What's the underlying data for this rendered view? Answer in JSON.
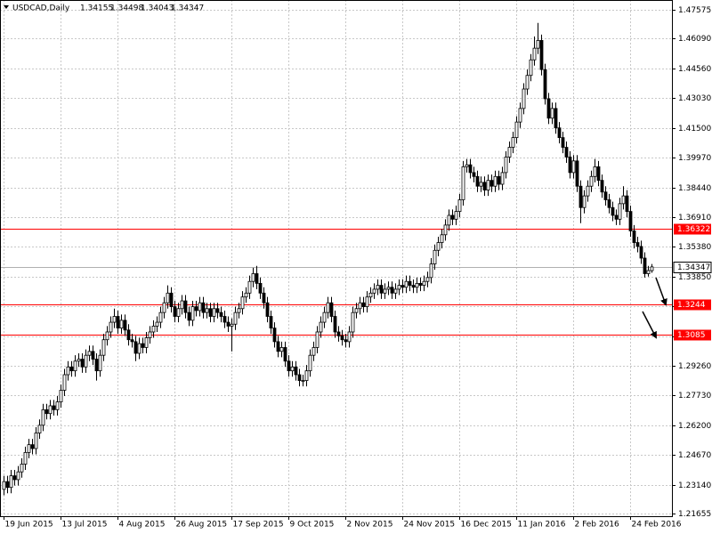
{
  "chart_data": {
    "type": "candlestick",
    "symbol": "USDCAD,Daily",
    "ohlc": [
      [
        1.229,
        1.236,
        1.226,
        1.233
      ],
      [
        1.233,
        1.236,
        1.227,
        1.23
      ],
      [
        1.23,
        1.239,
        1.227,
        1.236
      ],
      [
        1.236,
        1.239,
        1.231,
        1.234
      ],
      [
        1.234,
        1.241,
        1.231,
        1.238
      ],
      [
        1.238,
        1.245,
        1.235,
        1.242
      ],
      [
        1.242,
        1.251,
        1.239,
        1.248
      ],
      [
        1.248,
        1.255,
        1.245,
        1.252
      ],
      [
        1.252,
        1.255,
        1.247,
        1.25
      ],
      [
        1.25,
        1.261,
        1.247,
        1.258
      ],
      [
        1.258,
        1.265,
        1.255,
        1.262
      ],
      [
        1.262,
        1.273,
        1.259,
        1.27
      ],
      [
        1.27,
        1.273,
        1.265,
        1.268
      ],
      [
        1.268,
        1.275,
        1.265,
        1.272
      ],
      [
        1.272,
        1.275,
        1.267,
        1.27
      ],
      [
        1.27,
        1.277,
        1.267,
        1.274
      ],
      [
        1.274,
        1.283,
        1.271,
        1.28
      ],
      [
        1.28,
        1.291,
        1.277,
        1.288
      ],
      [
        1.288,
        1.295,
        1.285,
        1.292
      ],
      [
        1.292,
        1.295,
        1.287,
        1.29
      ],
      [
        1.29,
        1.298,
        1.287,
        1.295
      ],
      [
        1.295,
        1.299,
        1.292,
        1.296
      ],
      [
        1.296,
        1.299,
        1.289,
        1.292
      ],
      [
        1.292,
        1.301,
        1.289,
        1.298
      ],
      [
        1.298,
        1.303,
        1.295,
        1.3
      ],
      [
        1.3,
        1.303,
        1.293,
        1.296
      ],
      [
        1.296,
        1.299,
        1.285,
        1.29
      ],
      [
        1.29,
        1.301,
        1.287,
        1.298
      ],
      [
        1.298,
        1.309,
        1.295,
        1.306
      ],
      [
        1.306,
        1.313,
        1.303,
        1.31
      ],
      [
        1.31,
        1.318,
        1.307,
        1.315
      ],
      [
        1.315,
        1.322,
        1.312,
        1.318
      ],
      [
        1.318,
        1.321,
        1.309,
        1.312
      ],
      [
        1.312,
        1.319,
        1.309,
        1.316
      ],
      [
        1.316,
        1.319,
        1.308,
        1.311
      ],
      [
        1.311,
        1.314,
        1.303,
        1.306
      ],
      [
        1.306,
        1.309,
        1.302,
        1.305
      ],
      [
        1.305,
        1.308,
        1.295,
        1.299
      ],
      [
        1.299,
        1.307,
        1.296,
        1.304
      ],
      [
        1.304,
        1.307,
        1.299,
        1.302
      ],
      [
        1.302,
        1.31,
        1.299,
        1.307
      ],
      [
        1.307,
        1.313,
        1.304,
        1.31
      ],
      [
        1.31,
        1.316,
        1.307,
        1.313
      ],
      [
        1.313,
        1.318,
        1.31,
        1.315
      ],
      [
        1.315,
        1.323,
        1.312,
        1.32
      ],
      [
        1.32,
        1.328,
        1.317,
        1.325
      ],
      [
        1.325,
        1.334,
        1.322,
        1.33
      ],
      [
        1.33,
        1.333,
        1.32,
        1.323
      ],
      [
        1.323,
        1.326,
        1.315,
        1.318
      ],
      [
        1.318,
        1.325,
        1.315,
        1.322
      ],
      [
        1.322,
        1.329,
        1.319,
        1.326
      ],
      [
        1.326,
        1.329,
        1.317,
        1.32
      ],
      [
        1.32,
        1.323,
        1.313,
        1.316
      ],
      [
        1.316,
        1.326,
        1.313,
        1.323
      ],
      [
        1.323,
        1.326,
        1.318,
        1.321
      ],
      [
        1.321,
        1.328,
        1.318,
        1.325
      ],
      [
        1.325,
        1.328,
        1.317,
        1.32
      ],
      [
        1.32,
        1.325,
        1.317,
        1.322
      ],
      [
        1.322,
        1.325,
        1.315,
        1.318
      ],
      [
        1.318,
        1.325,
        1.315,
        1.322
      ],
      [
        1.322,
        1.325,
        1.317,
        1.32
      ],
      [
        1.32,
        1.323,
        1.315,
        1.318
      ],
      [
        1.318,
        1.321,
        1.312,
        1.315
      ],
      [
        1.315,
        1.318,
        1.31,
        1.313
      ],
      [
        1.313,
        1.317,
        1.3,
        1.314
      ],
      [
        1.314,
        1.323,
        1.311,
        1.32
      ],
      [
        1.32,
        1.325,
        1.317,
        1.322
      ],
      [
        1.322,
        1.331,
        1.319,
        1.328
      ],
      [
        1.328,
        1.333,
        1.325,
        1.33
      ],
      [
        1.33,
        1.339,
        1.327,
        1.336
      ],
      [
        1.336,
        1.343,
        1.333,
        1.34
      ],
      [
        1.34,
        1.344,
        1.332,
        1.335
      ],
      [
        1.335,
        1.338,
        1.327,
        1.33
      ],
      [
        1.33,
        1.333,
        1.322,
        1.325
      ],
      [
        1.325,
        1.328,
        1.315,
        1.318
      ],
      [
        1.318,
        1.321,
        1.309,
        1.312
      ],
      [
        1.312,
        1.315,
        1.302,
        1.305
      ],
      [
        1.305,
        1.308,
        1.297,
        1.3
      ],
      [
        1.3,
        1.305,
        1.297,
        1.302
      ],
      [
        1.302,
        1.305,
        1.292,
        1.295
      ],
      [
        1.295,
        1.298,
        1.287,
        1.29
      ],
      [
        1.29,
        1.295,
        1.287,
        1.292
      ],
      [
        1.292,
        1.295,
        1.285,
        1.288
      ],
      [
        1.288,
        1.291,
        1.282,
        1.285
      ],
      [
        1.285,
        1.288,
        1.282,
        1.285
      ],
      [
        1.285,
        1.293,
        1.282,
        1.29
      ],
      [
        1.29,
        1.301,
        1.287,
        1.298
      ],
      [
        1.298,
        1.305,
        1.295,
        1.302
      ],
      [
        1.302,
        1.313,
        1.299,
        1.31
      ],
      [
        1.31,
        1.318,
        1.307,
        1.315
      ],
      [
        1.315,
        1.323,
        1.312,
        1.32
      ],
      [
        1.32,
        1.328,
        1.317,
        1.325
      ],
      [
        1.325,
        1.328,
        1.315,
        1.318
      ],
      [
        1.318,
        1.321,
        1.307,
        1.31
      ],
      [
        1.31,
        1.313,
        1.305,
        1.308
      ],
      [
        1.308,
        1.311,
        1.303,
        1.306
      ],
      [
        1.306,
        1.309,
        1.302,
        1.305
      ],
      [
        1.305,
        1.313,
        1.302,
        1.31
      ],
      [
        1.31,
        1.323,
        1.307,
        1.32
      ],
      [
        1.32,
        1.325,
        1.317,
        1.322
      ],
      [
        1.322,
        1.328,
        1.319,
        1.325
      ],
      [
        1.325,
        1.328,
        1.32,
        1.323
      ],
      [
        1.323,
        1.331,
        1.32,
        1.328
      ],
      [
        1.328,
        1.333,
        1.325,
        1.33
      ],
      [
        1.33,
        1.335,
        1.327,
        1.332
      ],
      [
        1.332,
        1.337,
        1.329,
        1.334
      ],
      [
        1.334,
        1.337,
        1.327,
        1.33
      ],
      [
        1.33,
        1.335,
        1.327,
        1.332
      ],
      [
        1.332,
        1.336,
        1.329,
        1.333
      ],
      [
        1.333,
        1.336,
        1.327,
        1.33
      ],
      [
        1.33,
        1.335,
        1.327,
        1.332
      ],
      [
        1.332,
        1.337,
        1.329,
        1.334
      ],
      [
        1.334,
        1.337,
        1.33,
        1.333
      ],
      [
        1.333,
        1.339,
        1.33,
        1.336
      ],
      [
        1.336,
        1.339,
        1.331,
        1.334
      ],
      [
        1.334,
        1.337,
        1.33,
        1.333
      ],
      [
        1.333,
        1.338,
        1.33,
        1.335
      ],
      [
        1.335,
        1.338,
        1.331,
        1.334
      ],
      [
        1.334,
        1.339,
        1.331,
        1.336
      ],
      [
        1.336,
        1.341,
        1.333,
        1.338
      ],
      [
        1.338,
        1.348,
        1.335,
        1.345
      ],
      [
        1.345,
        1.355,
        1.342,
        1.352
      ],
      [
        1.352,
        1.359,
        1.349,
        1.356
      ],
      [
        1.356,
        1.363,
        1.353,
        1.36
      ],
      [
        1.36,
        1.368,
        1.357,
        1.365
      ],
      [
        1.365,
        1.373,
        1.362,
        1.37
      ],
      [
        1.37,
        1.373,
        1.365,
        1.368
      ],
      [
        1.368,
        1.375,
        1.365,
        1.372
      ],
      [
        1.372,
        1.381,
        1.369,
        1.378
      ],
      [
        1.378,
        1.398,
        1.375,
        1.395
      ],
      [
        1.395,
        1.399,
        1.392,
        1.396
      ],
      [
        1.396,
        1.399,
        1.389,
        1.392
      ],
      [
        1.392,
        1.395,
        1.387,
        1.39
      ],
      [
        1.39,
        1.393,
        1.382,
        1.385
      ],
      [
        1.385,
        1.39,
        1.382,
        1.387
      ],
      [
        1.387,
        1.39,
        1.38,
        1.383
      ],
      [
        1.383,
        1.391,
        1.38,
        1.388
      ],
      [
        1.388,
        1.391,
        1.382,
        1.385
      ],
      [
        1.385,
        1.393,
        1.382,
        1.39
      ],
      [
        1.39,
        1.393,
        1.383,
        1.386
      ],
      [
        1.386,
        1.395,
        1.383,
        1.392
      ],
      [
        1.392,
        1.403,
        1.389,
        1.4
      ],
      [
        1.4,
        1.408,
        1.397,
        1.405
      ],
      [
        1.405,
        1.413,
        1.402,
        1.41
      ],
      [
        1.41,
        1.421,
        1.407,
        1.418
      ],
      [
        1.418,
        1.428,
        1.415,
        1.425
      ],
      [
        1.425,
        1.438,
        1.422,
        1.435
      ],
      [
        1.435,
        1.445,
        1.432,
        1.442
      ],
      [
        1.442,
        1.453,
        1.439,
        1.45
      ],
      [
        1.45,
        1.462,
        1.447,
        1.456
      ],
      [
        1.456,
        1.469,
        1.453,
        1.46
      ],
      [
        1.46,
        1.463,
        1.442,
        1.445
      ],
      [
        1.445,
        1.448,
        1.427,
        1.43
      ],
      [
        1.43,
        1.433,
        1.417,
        1.42
      ],
      [
        1.42,
        1.428,
        1.417,
        1.425
      ],
      [
        1.425,
        1.428,
        1.412,
        1.415
      ],
      [
        1.415,
        1.418,
        1.407,
        1.41
      ],
      [
        1.41,
        1.413,
        1.402,
        1.405
      ],
      [
        1.405,
        1.408,
        1.397,
        1.4
      ],
      [
        1.4,
        1.403,
        1.389,
        1.392
      ],
      [
        1.392,
        1.401,
        1.389,
        1.398
      ],
      [
        1.398,
        1.401,
        1.382,
        1.385
      ],
      [
        1.385,
        1.388,
        1.366,
        1.374
      ],
      [
        1.374,
        1.383,
        1.371,
        1.38
      ],
      [
        1.38,
        1.388,
        1.377,
        1.385
      ],
      [
        1.385,
        1.393,
        1.382,
        1.39
      ],
      [
        1.39,
        1.399,
        1.387,
        1.395
      ],
      [
        1.395,
        1.398,
        1.385,
        1.388
      ],
      [
        1.388,
        1.391,
        1.379,
        1.382
      ],
      [
        1.382,
        1.385,
        1.375,
        1.378
      ],
      [
        1.378,
        1.381,
        1.371,
        1.374
      ],
      [
        1.374,
        1.377,
        1.367,
        1.37
      ],
      [
        1.37,
        1.373,
        1.365,
        1.368
      ],
      [
        1.368,
        1.379,
        1.365,
        1.376
      ],
      [
        1.376,
        1.385,
        1.373,
        1.38
      ],
      [
        1.38,
        1.383,
        1.369,
        1.372
      ],
      [
        1.372,
        1.375,
        1.359,
        1.362
      ],
      [
        1.362,
        1.365,
        1.353,
        1.356
      ],
      [
        1.356,
        1.359,
        1.351,
        1.354
      ],
      [
        1.354,
        1.357,
        1.345,
        1.348
      ],
      [
        1.348,
        1.351,
        1.338,
        1.34
      ],
      [
        1.34,
        1.344,
        1.3385,
        1.3416
      ],
      [
        1.34155,
        1.34498,
        1.34043,
        1.34347
      ]
    ],
    "bull_color": "#ffffff",
    "bear_color": "#000000",
    "level_color": "#ff0000",
    "levels": [
      1.36322,
      1.3244,
      1.3085
    ],
    "xlim": [
      -1,
      187.75
    ],
    "xticks": [
      {
        "value": 0,
        "label": "19 Jun 2015"
      },
      {
        "value": 16,
        "label": "13 Jul 2015"
      },
      {
        "value": 32,
        "label": "4 Aug 2015"
      },
      {
        "value": 48,
        "label": "26 Aug 2015"
      },
      {
        "value": 64,
        "label": "17 Sep 2015"
      },
      {
        "value": 80,
        "label": "9 Oct 2015"
      },
      {
        "value": 96,
        "label": "2 Nov 2015"
      },
      {
        "value": 112,
        "label": "24 Nov 2015"
      },
      {
        "value": 128,
        "label": "16 Dec 2015"
      },
      {
        "value": 144,
        "label": "11 Jan 2016"
      },
      {
        "value": 160,
        "label": "2 Feb 2016"
      },
      {
        "value": 176,
        "label": "24 Feb 2016"
      }
    ],
    "ylim": [
      1.2152,
      1.4808
    ],
    "yticks": [
      1.47575,
      {
        "value": 1.4609,
        "label": "1.46090"
      },
      {
        "value": 1.4456,
        "label": "1.44560"
      },
      {
        "value": 1.4303,
        "label": "1.43030"
      },
      {
        "value": 1.415,
        "label": "1.41500"
      },
      {
        "value": 1.3997,
        "label": "1.39970"
      },
      {
        "value": 1.3844,
        "label": "1.38440"
      },
      {
        "value": 1.3691,
        "label": "1.36910"
      },
      {
        "value": 1.3538,
        "label": "1.35380"
      },
      {
        "value": 1.3385,
        "label": "1.33850"
      },
      {
        "value": 1.3232,
        "label": "1.32320"
      },
      {
        "value": 1.3079,
        "label": "1.30790"
      },
      {
        "value": 1.2926,
        "label": "1.29260"
      },
      {
        "value": 1.2773,
        "label": "1.27730"
      },
      {
        "value": 1.262,
        "label": "1.26200"
      },
      {
        "value": 1.2467,
        "label": "1.24670"
      },
      {
        "value": 1.2314,
        "label": "1.23140"
      },
      1.21655
    ],
    "grid": true
  }
}
